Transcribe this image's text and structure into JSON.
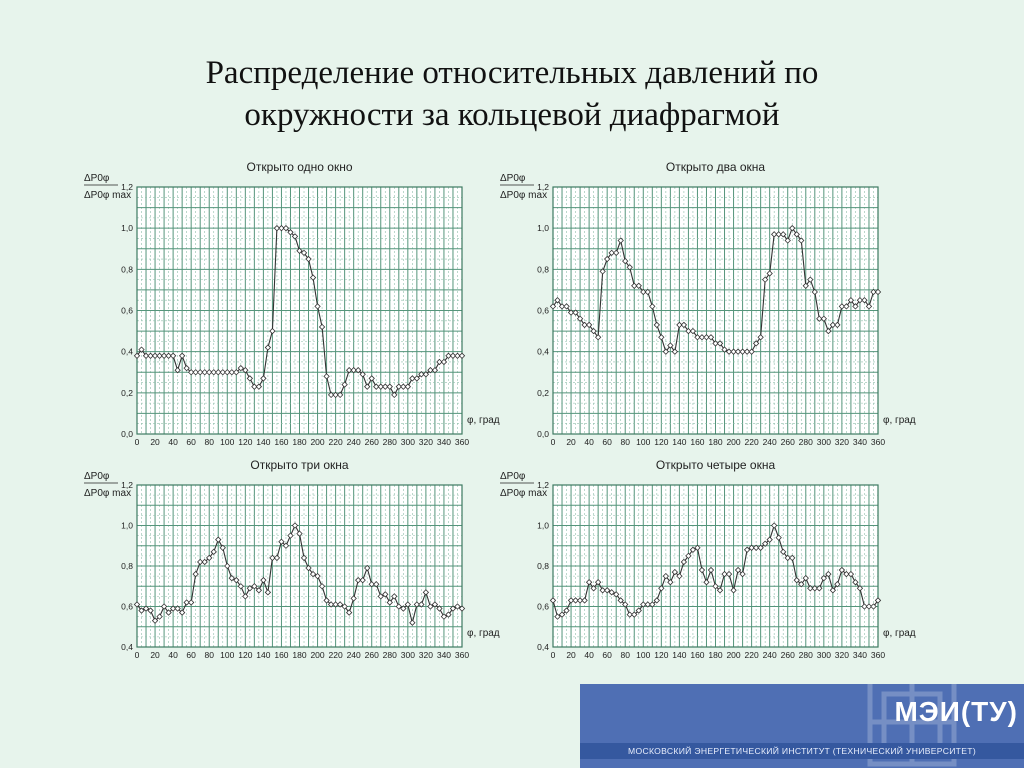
{
  "slide": {
    "title_line1": "Распределение относительных давлений по",
    "title_line2": "окружности за кольцевой диафрагмой"
  },
  "logo": {
    "name": "МЭИ(ТУ)",
    "subtitle": "МОСКОВСКИЙ ЭНЕРГЕТИЧЕСКИЙ ИНСТИТУТ (ТЕХНИЧЕСКИЙ УНИВЕРСИТЕТ)"
  },
  "colors": {
    "background": "#e7f4ec",
    "plot_background": "#ffffff",
    "grid_major": "#55957b",
    "grid_minor": "#8fbfab",
    "series_line": "#333333",
    "logo_band": "#4f6fb4",
    "logo_strip": "#35589f"
  },
  "chart_data": [
    {
      "type": "line",
      "title": "Открыто одно окно",
      "xlabel": "φ, град",
      "ylabel_num": "ΔP0φ",
      "ylabel_den": "ΔP0φ max",
      "xlim": [
        0,
        360
      ],
      "ylim": [
        0,
        1.2
      ],
      "x_ticks": [
        0,
        20,
        40,
        60,
        80,
        100,
        120,
        140,
        160,
        180,
        200,
        220,
        240,
        260,
        280,
        300,
        320,
        340,
        360
      ],
      "y_ticks": [
        "0,0",
        "0,2",
        "0,4",
        "0,6",
        "0,8",
        "1,0",
        "1,2"
      ],
      "y_tick_values": [
        0,
        0.2,
        0.4,
        0.6,
        0.8,
        1.0,
        1.2
      ],
      "grid": true,
      "marker": "diamond",
      "series": [
        {
          "x": [
            0,
            5,
            10,
            15,
            20,
            25,
            30,
            35,
            40,
            45,
            50,
            55,
            60,
            65,
            70,
            75,
            80,
            85,
            90,
            95,
            100,
            105,
            110,
            115,
            120,
            125,
            130,
            135,
            140,
            145,
            150,
            155,
            160,
            165,
            170,
            175,
            180,
            185,
            190,
            195,
            200,
            205,
            210,
            215,
            220,
            225,
            230,
            235,
            240,
            245,
            250,
            255,
            260,
            265,
            270,
            275,
            280,
            285,
            290,
            295,
            300,
            305,
            310,
            315,
            320,
            325,
            330,
            335,
            340,
            345,
            350,
            355,
            360
          ],
          "y": [
            0.38,
            0.41,
            0.38,
            0.38,
            0.38,
            0.38,
            0.38,
            0.38,
            0.38,
            0.31,
            0.38,
            0.32,
            0.3,
            0.3,
            0.3,
            0.3,
            0.3,
            0.3,
            0.3,
            0.3,
            0.3,
            0.3,
            0.3,
            0.32,
            0.31,
            0.27,
            0.23,
            0.23,
            0.27,
            0.42,
            0.5,
            1.0,
            1.0,
            1.0,
            0.98,
            0.96,
            0.89,
            0.88,
            0.85,
            0.76,
            0.62,
            0.52,
            0.28,
            0.19,
            0.19,
            0.19,
            0.24,
            0.31,
            0.31,
            0.31,
            0.29,
            0.23,
            0.27,
            0.23,
            0.23,
            0.23,
            0.23,
            0.19,
            0.23,
            0.23,
            0.23,
            0.27,
            0.27,
            0.29,
            0.29,
            0.31,
            0.31,
            0.35,
            0.35,
            0.38,
            0.38,
            0.38,
            0.38
          ]
        }
      ]
    },
    {
      "type": "line",
      "title": "Открыто два окна",
      "xlabel": "φ, град",
      "ylabel_num": "ΔP0φ",
      "ylabel_den": "ΔP0φ max",
      "xlim": [
        0,
        360
      ],
      "ylim": [
        0,
        1.2
      ],
      "x_ticks": [
        0,
        20,
        40,
        60,
        80,
        100,
        120,
        140,
        160,
        180,
        200,
        220,
        240,
        260,
        280,
        300,
        320,
        340,
        360
      ],
      "y_ticks": [
        "0,0",
        "0,2",
        "0,4",
        "0,6",
        "0,8",
        "1,0",
        "1,2"
      ],
      "y_tick_values": [
        0,
        0.2,
        0.4,
        0.6,
        0.8,
        1.0,
        1.2
      ],
      "grid": true,
      "marker": "diamond",
      "series": [
        {
          "x": [
            0,
            5,
            10,
            15,
            20,
            25,
            30,
            35,
            40,
            45,
            50,
            55,
            60,
            65,
            70,
            75,
            80,
            85,
            90,
            95,
            100,
            105,
            110,
            115,
            120,
            125,
            130,
            135,
            140,
            145,
            150,
            155,
            160,
            165,
            170,
            175,
            180,
            185,
            190,
            195,
            200,
            205,
            210,
            215,
            220,
            225,
            230,
            235,
            240,
            245,
            250,
            255,
            260,
            265,
            270,
            275,
            280,
            285,
            290,
            295,
            300,
            305,
            310,
            315,
            320,
            325,
            330,
            335,
            340,
            345,
            350,
            355,
            360
          ],
          "y": [
            0.62,
            0.65,
            0.62,
            0.62,
            0.59,
            0.59,
            0.56,
            0.53,
            0.53,
            0.5,
            0.47,
            0.79,
            0.85,
            0.88,
            0.88,
            0.94,
            0.84,
            0.81,
            0.72,
            0.72,
            0.69,
            0.69,
            0.62,
            0.53,
            0.47,
            0.4,
            0.43,
            0.4,
            0.53,
            0.53,
            0.5,
            0.5,
            0.47,
            0.47,
            0.47,
            0.47,
            0.44,
            0.44,
            0.41,
            0.4,
            0.4,
            0.4,
            0.4,
            0.4,
            0.4,
            0.44,
            0.47,
            0.75,
            0.78,
            0.97,
            0.97,
            0.97,
            0.94,
            1.0,
            0.97,
            0.94,
            0.72,
            0.75,
            0.69,
            0.56,
            0.56,
            0.5,
            0.53,
            0.53,
            0.62,
            0.62,
            0.65,
            0.62,
            0.65,
            0.65,
            0.62,
            0.69,
            0.69
          ]
        }
      ]
    },
    {
      "type": "line",
      "title": "Открыто три окна",
      "xlabel": "φ, град",
      "ylabel_num": "ΔP0φ",
      "ylabel_den": "ΔP0φ max",
      "xlim": [
        0,
        360
      ],
      "ylim": [
        0.4,
        1.2
      ],
      "x_ticks": [
        0,
        20,
        40,
        60,
        80,
        100,
        120,
        140,
        160,
        180,
        200,
        220,
        240,
        260,
        280,
        300,
        320,
        340,
        360
      ],
      "y_ticks": [
        "0,4",
        "0,6",
        "0,8",
        "1,0",
        "1,2"
      ],
      "y_tick_values": [
        0.4,
        0.6,
        0.8,
        1.0,
        1.2
      ],
      "grid": true,
      "marker": "diamond",
      "series": [
        {
          "x": [
            0,
            5,
            10,
            15,
            20,
            25,
            30,
            35,
            40,
            45,
            50,
            55,
            60,
            65,
            70,
            75,
            80,
            85,
            90,
            95,
            100,
            105,
            110,
            115,
            120,
            125,
            130,
            135,
            140,
            145,
            150,
            155,
            160,
            165,
            170,
            175,
            180,
            185,
            190,
            195,
            200,
            205,
            210,
            215,
            220,
            225,
            230,
            235,
            240,
            245,
            250,
            255,
            260,
            265,
            270,
            275,
            280,
            285,
            290,
            295,
            300,
            305,
            310,
            315,
            320,
            325,
            330,
            335,
            340,
            345,
            350,
            355,
            360
          ],
          "y": [
            0.61,
            0.58,
            0.59,
            0.58,
            0.53,
            0.55,
            0.6,
            0.57,
            0.59,
            0.59,
            0.57,
            0.62,
            0.62,
            0.76,
            0.82,
            0.82,
            0.84,
            0.87,
            0.93,
            0.89,
            0.8,
            0.74,
            0.73,
            0.7,
            0.65,
            0.69,
            0.7,
            0.68,
            0.73,
            0.67,
            0.84,
            0.84,
            0.92,
            0.9,
            0.95,
            1.0,
            0.96,
            0.84,
            0.79,
            0.76,
            0.75,
            0.7,
            0.63,
            0.61,
            0.61,
            0.61,
            0.6,
            0.57,
            0.64,
            0.73,
            0.73,
            0.79,
            0.71,
            0.71,
            0.65,
            0.66,
            0.62,
            0.65,
            0.6,
            0.59,
            0.61,
            0.52,
            0.61,
            0.61,
            0.67,
            0.6,
            0.61,
            0.59,
            0.55,
            0.56,
            0.59,
            0.6,
            0.59
          ]
        }
      ]
    },
    {
      "type": "line",
      "title": "Открыто четыре окна",
      "xlabel": "φ, град",
      "ylabel_num": "ΔP0φ",
      "ylabel_den": "ΔP0φ max",
      "xlim": [
        0,
        360
      ],
      "ylim": [
        0.4,
        1.2
      ],
      "x_ticks": [
        0,
        20,
        40,
        60,
        80,
        100,
        120,
        140,
        160,
        180,
        200,
        220,
        240,
        260,
        280,
        300,
        320,
        340,
        360
      ],
      "y_ticks": [
        "0,4",
        "0,6",
        "0,8",
        "1,0",
        "1,2"
      ],
      "y_tick_values": [
        0.4,
        0.6,
        0.8,
        1.0,
        1.2
      ],
      "grid": true,
      "marker": "diamond",
      "series": [
        {
          "x": [
            0,
            5,
            10,
            15,
            20,
            25,
            30,
            35,
            40,
            45,
            50,
            55,
            60,
            65,
            70,
            75,
            80,
            85,
            90,
            95,
            100,
            105,
            110,
            115,
            120,
            125,
            130,
            135,
            140,
            145,
            150,
            155,
            160,
            165,
            170,
            175,
            180,
            185,
            190,
            195,
            200,
            205,
            210,
            215,
            220,
            225,
            230,
            235,
            240,
            245,
            250,
            255,
            260,
            265,
            270,
            275,
            280,
            285,
            290,
            295,
            300,
            305,
            310,
            315,
            320,
            325,
            330,
            335,
            340,
            345,
            350,
            355,
            360
          ],
          "y": [
            0.63,
            0.55,
            0.56,
            0.58,
            0.63,
            0.63,
            0.63,
            0.63,
            0.72,
            0.69,
            0.72,
            0.68,
            0.68,
            0.67,
            0.66,
            0.63,
            0.61,
            0.56,
            0.56,
            0.58,
            0.61,
            0.61,
            0.61,
            0.63,
            0.69,
            0.75,
            0.72,
            0.77,
            0.75,
            0.82,
            0.85,
            0.88,
            0.89,
            0.78,
            0.72,
            0.78,
            0.7,
            0.68,
            0.76,
            0.76,
            0.68,
            0.78,
            0.76,
            0.88,
            0.89,
            0.89,
            0.89,
            0.91,
            0.93,
            1.0,
            0.94,
            0.87,
            0.84,
            0.84,
            0.73,
            0.71,
            0.74,
            0.69,
            0.69,
            0.69,
            0.74,
            0.76,
            0.68,
            0.71,
            0.78,
            0.76,
            0.76,
            0.72,
            0.69,
            0.6,
            0.6,
            0.6,
            0.63
          ]
        }
      ]
    }
  ]
}
